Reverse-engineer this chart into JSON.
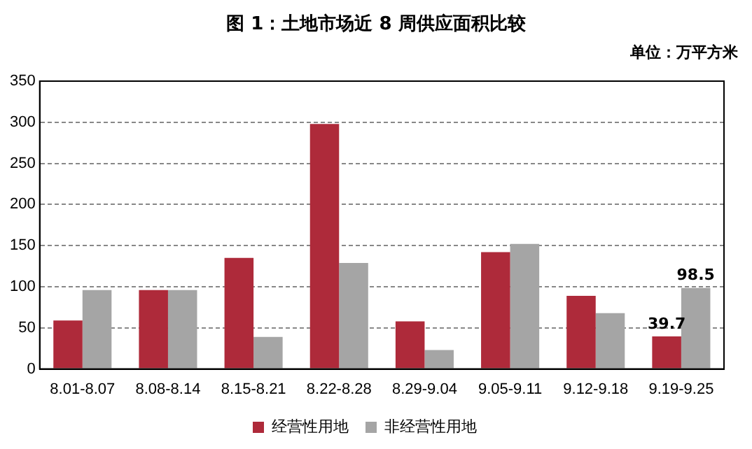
{
  "chart_data": {
    "type": "bar",
    "title": "图 1：土地市场近 8 周供应面积比较",
    "annotations": [
      "单位：万平方米"
    ],
    "categories": [
      "8.01-8.07",
      "8.08-8.14",
      "8.15-8.21",
      "8.22-8.28",
      "8.29-9.04",
      "9.05-9.11",
      "9.12-9.18",
      "9.19-9.25"
    ],
    "series": [
      {
        "name": "经营性用地",
        "color": "#ae2a3a",
        "values": [
          59,
          96,
          135,
          298,
          58,
          142,
          89,
          39.7
        ],
        "value_labels": [
          null,
          null,
          null,
          null,
          null,
          null,
          null,
          "39.7"
        ]
      },
      {
        "name": "非经营性用地",
        "color": "#a5a5a5",
        "values": [
          96,
          96,
          39,
          129,
          23,
          152,
          68,
          98.5
        ],
        "value_labels": [
          null,
          null,
          null,
          null,
          null,
          null,
          null,
          "98.5"
        ]
      }
    ],
    "ylim": [
      0,
      350
    ],
    "yticks": [
      0,
      50,
      100,
      150,
      200,
      250,
      300,
      350
    ],
    "grid": "y",
    "legend": "bottom"
  }
}
